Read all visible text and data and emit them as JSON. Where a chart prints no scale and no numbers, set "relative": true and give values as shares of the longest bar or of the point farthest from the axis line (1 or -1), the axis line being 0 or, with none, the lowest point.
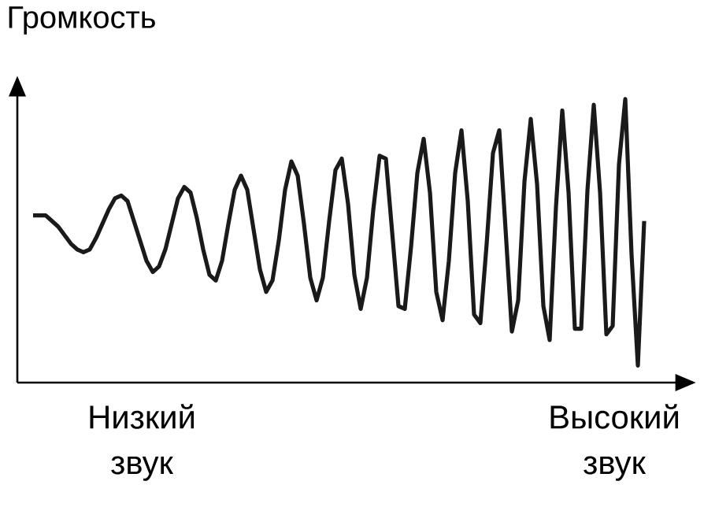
{
  "chart_data": {
    "type": "line",
    "ylabel": "Громкость",
    "relative": true,
    "color": "#1a1a1a",
    "annotations": [
      "Низкий звук",
      "Высокий звук"
    ],
    "categories": [
      null,
      null,
      null,
      null,
      null,
      null,
      null,
      null,
      null,
      null,
      null,
      null,
      null,
      null,
      null,
      null,
      null,
      null,
      null,
      null,
      null,
      null,
      null,
      null,
      null,
      null,
      null,
      null,
      null,
      null,
      null,
      null,
      null,
      null,
      null,
      null,
      null,
      null,
      null,
      null,
      null,
      null,
      null,
      null,
      null,
      null,
      null,
      null,
      null,
      null,
      null,
      null,
      null,
      null,
      null,
      null,
      null,
      null,
      null,
      null,
      null,
      null,
      null,
      null,
      null,
      null,
      null,
      null,
      null,
      null,
      null,
      null,
      null,
      null,
      null,
      null,
      null,
      null,
      null,
      null,
      null,
      null,
      null,
      null,
      null,
      null,
      null,
      null,
      null,
      null,
      null,
      null,
      null,
      null,
      null,
      null,
      null,
      null
    ],
    "values": [
      0.59,
      0.59,
      0.59,
      0.57,
      0.55,
      0.52,
      0.49,
      0.47,
      0.46,
      0.47,
      0.51,
      0.56,
      0.61,
      0.65,
      0.66,
      0.64,
      0.57,
      0.5,
      0.43,
      0.39,
      0.41,
      0.47,
      0.56,
      0.65,
      0.69,
      0.67,
      0.58,
      0.47,
      0.38,
      0.36,
      0.43,
      0.56,
      0.68,
      0.73,
      0.68,
      0.54,
      0.4,
      0.32,
      0.36,
      0.5,
      0.68,
      0.78,
      0.73,
      0.56,
      0.37,
      0.29,
      0.37,
      0.57,
      0.75,
      0.79,
      0.63,
      0.38,
      0.26,
      0.37,
      0.61,
      0.8,
      0.79,
      0.53,
      0.27,
      0.26,
      0.48,
      0.74,
      0.86,
      0.67,
      0.32,
      0.22,
      0.43,
      0.74,
      0.89,
      0.64,
      0.24,
      0.21,
      0.49,
      0.81,
      0.89,
      0.54,
      0.18,
      0.29,
      0.71,
      0.93,
      0.7,
      0.27,
      0.15,
      0.62,
      0.96,
      0.67,
      0.19,
      0.19,
      0.68,
      0.98,
      0.67,
      0.17,
      0.2,
      0.77,
      1,
      0.45,
      0.06,
      0.57
    ]
  }
}
